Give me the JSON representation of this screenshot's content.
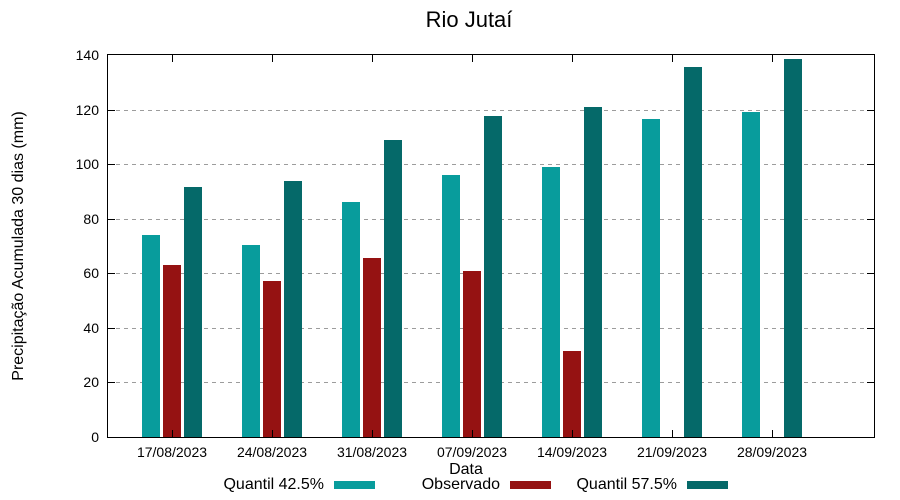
{
  "title": "Rio Jutaí",
  "chart_data": {
    "type": "bar",
    "title": "Rio Jutaí",
    "xlabel": "Data",
    "ylabel": "Precipitação Acumulada 30 dias (mm)",
    "ylim": [
      0,
      140
    ],
    "yticks": [
      0,
      20,
      40,
      60,
      80,
      100,
      120,
      140
    ],
    "grid": "horizontal-dashed",
    "grid_color": "#9c9c9c",
    "legend_position": "bottom",
    "categories": [
      "17/08/2023",
      "24/08/2023",
      "31/08/2023",
      "07/09/2023",
      "14/09/2023",
      "21/09/2023",
      "28/09/2023"
    ],
    "series": [
      {
        "name": "Quantil 42.5%",
        "color": "#089c9c",
        "values": [
          74,
          70.5,
          86,
          96,
          99,
          116.5,
          119
        ]
      },
      {
        "name": "Observado",
        "color": "#951212",
        "values": [
          63,
          57,
          65.5,
          61,
          31.5,
          null,
          null
        ]
      },
      {
        "name": "Quantil 57.5%",
        "color": "#056969",
        "values": [
          91.5,
          94,
          109,
          117.5,
          121,
          135.5,
          138.5
        ]
      }
    ]
  }
}
